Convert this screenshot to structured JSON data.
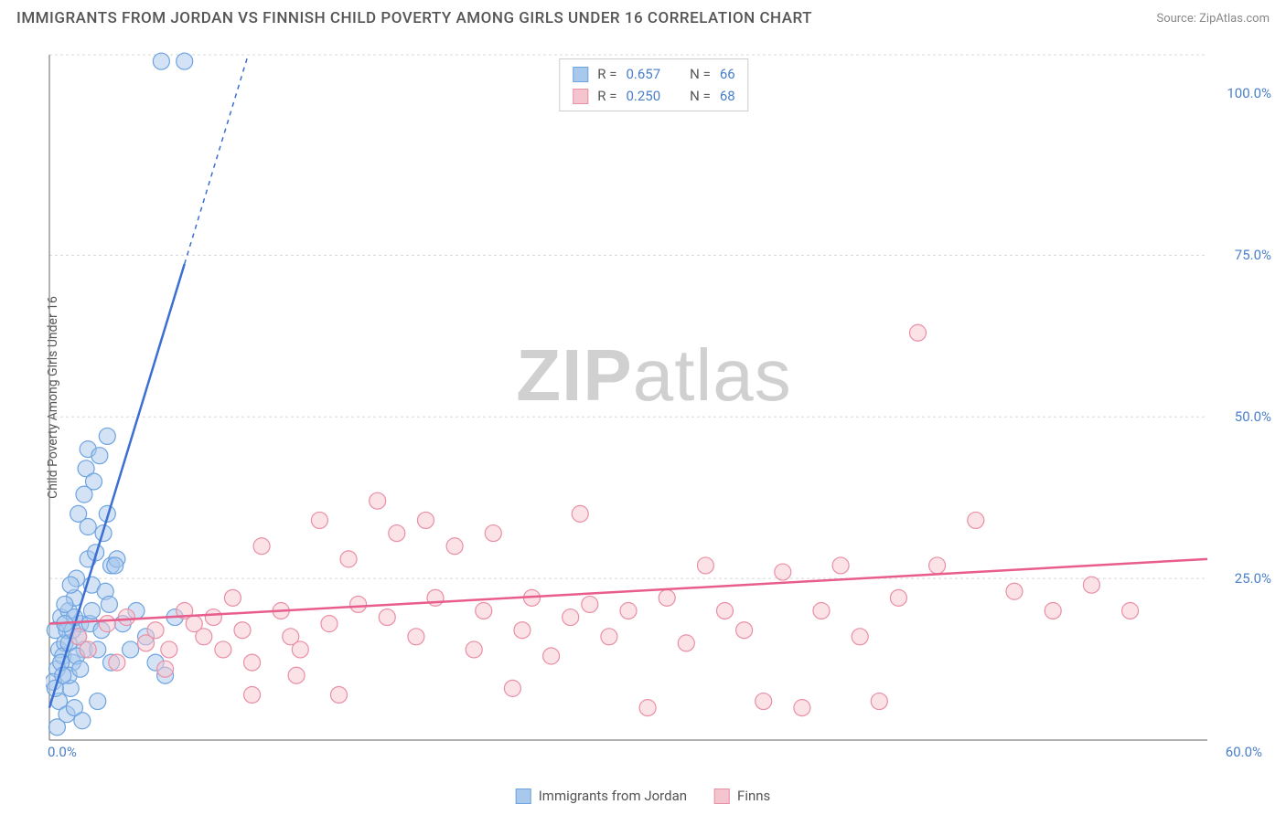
{
  "title": "IMMIGRANTS FROM JORDAN VS FINNISH CHILD POVERTY AMONG GIRLS UNDER 16 CORRELATION CHART",
  "source_label": "Source: ZipAtlas.com",
  "ylabel": "Child Poverty Among Girls Under 16",
  "watermark_bold": "ZIP",
  "watermark_rest": "atlas",
  "chart": {
    "type": "scatter",
    "xlim": [
      0,
      60
    ],
    "ylim": [
      0,
      106
    ],
    "xtick_labels": {
      "0": "0.0%",
      "60": "60.0%"
    },
    "ytick_labels": {
      "25": "25.0%",
      "50": "50.0%",
      "75": "75.0%",
      "100": "100.0%"
    },
    "grid_color": "#d8d8d8",
    "axis_color": "#808080",
    "plot_bg": "#ffffff",
    "marker_radius": 9,
    "marker_stroke_width": 1.2,
    "series": [
      {
        "name": "Immigrants from Jordan",
        "fill": "#a8c8ec",
        "stroke": "#6da3e0",
        "fill_opacity": 0.5,
        "r_label": "R =",
        "r_value": "0.657",
        "n_label": "N =",
        "n_value": "66",
        "trend": {
          "x1": 0,
          "y1": 5,
          "x2": 10.3,
          "y2": 106,
          "solid_until_x": 7.0,
          "color": "#3b6fd1",
          "width": 2.5
        },
        "points": [
          [
            0.3,
            17
          ],
          [
            0.5,
            14
          ],
          [
            0.4,
            11
          ],
          [
            0.6,
            19
          ],
          [
            0.8,
            15
          ],
          [
            0.2,
            9
          ],
          [
            0.7,
            13
          ],
          [
            0.9,
            17
          ],
          [
            1.0,
            20
          ],
          [
            1.2,
            12
          ],
          [
            1.3,
            22
          ],
          [
            1.5,
            16
          ],
          [
            1.1,
            8
          ],
          [
            1.4,
            25
          ],
          [
            1.6,
            18
          ],
          [
            1.8,
            14
          ],
          [
            0.5,
            6
          ],
          [
            0.8,
            21
          ],
          [
            1.0,
            10
          ],
          [
            2.0,
            28
          ],
          [
            2.2,
            24
          ],
          [
            2.4,
            29
          ],
          [
            2.1,
            18
          ],
          [
            2.5,
            14
          ],
          [
            2.8,
            32
          ],
          [
            3.0,
            35
          ],
          [
            3.2,
            27
          ],
          [
            3.5,
            28
          ],
          [
            1.9,
            42
          ],
          [
            2.0,
            45
          ],
          [
            2.3,
            40
          ],
          [
            2.6,
            44
          ],
          [
            3.0,
            47
          ],
          [
            1.5,
            35
          ],
          [
            1.8,
            38
          ],
          [
            2.0,
            33
          ],
          [
            0.4,
            2
          ],
          [
            0.9,
            4
          ],
          [
            1.3,
            5
          ],
          [
            1.7,
            3
          ],
          [
            2.5,
            6
          ],
          [
            3.2,
            12
          ],
          [
            3.8,
            18
          ],
          [
            4.2,
            14
          ],
          [
            4.5,
            20
          ],
          [
            5.0,
            16
          ],
          [
            5.5,
            12
          ],
          [
            6.0,
            10
          ],
          [
            6.5,
            19
          ],
          [
            1.0,
            15
          ],
          [
            1.2,
            17
          ],
          [
            1.4,
            13
          ],
          [
            0.6,
            12
          ],
          [
            0.3,
            8
          ],
          [
            0.7,
            10
          ],
          [
            1.6,
            11
          ],
          [
            3.4,
            27
          ],
          [
            2.9,
            23
          ],
          [
            2.2,
            20
          ],
          [
            1.1,
            24
          ],
          [
            1.3,
            19
          ],
          [
            0.8,
            18
          ],
          [
            2.7,
            17
          ],
          [
            3.1,
            21
          ],
          [
            5.8,
            105
          ],
          [
            7.0,
            105
          ]
        ]
      },
      {
        "name": "Finns",
        "fill": "#f5c5cf",
        "stroke": "#e98fa5",
        "fill_opacity": 0.5,
        "r_label": "R =",
        "r_value": "0.250",
        "n_label": "N =",
        "n_value": "68",
        "trend": {
          "x1": 0,
          "y1": 18,
          "x2": 60,
          "y2": 28,
          "color": "#e85d8c",
          "width": 2.5
        },
        "points": [
          [
            1.5,
            16
          ],
          [
            2.0,
            14
          ],
          [
            3.0,
            18
          ],
          [
            3.5,
            12
          ],
          [
            4.0,
            19
          ],
          [
            5.0,
            15
          ],
          [
            5.5,
            17
          ],
          [
            6.0,
            11
          ],
          [
            7.0,
            20
          ],
          [
            8.0,
            16
          ],
          [
            8.5,
            19
          ],
          [
            9.0,
            14
          ],
          [
            9.5,
            22
          ],
          [
            10.0,
            17
          ],
          [
            10.5,
            7
          ],
          [
            11.0,
            30
          ],
          [
            12.0,
            20
          ],
          [
            12.5,
            16
          ],
          [
            13.0,
            14
          ],
          [
            14.0,
            34
          ],
          [
            14.5,
            18
          ],
          [
            15.0,
            7
          ],
          [
            15.5,
            28
          ],
          [
            16.0,
            21
          ],
          [
            17.0,
            37
          ],
          [
            17.5,
            19
          ],
          [
            18.0,
            32
          ],
          [
            19.0,
            16
          ],
          [
            19.5,
            34
          ],
          [
            20.0,
            22
          ],
          [
            21.0,
            30
          ],
          [
            22.0,
            14
          ],
          [
            22.5,
            20
          ],
          [
            23.0,
            32
          ],
          [
            24.0,
            8
          ],
          [
            24.5,
            17
          ],
          [
            25.0,
            22
          ],
          [
            26.0,
            13
          ],
          [
            27.0,
            19
          ],
          [
            27.5,
            35
          ],
          [
            28.0,
            21
          ],
          [
            29.0,
            16
          ],
          [
            30.0,
            20
          ],
          [
            31.0,
            5
          ],
          [
            32.0,
            22
          ],
          [
            33.0,
            15
          ],
          [
            34.0,
            27
          ],
          [
            35.0,
            20
          ],
          [
            36.0,
            17
          ],
          [
            37.0,
            6
          ],
          [
            38.0,
            26
          ],
          [
            39.0,
            5
          ],
          [
            40.0,
            20
          ],
          [
            41.0,
            27
          ],
          [
            42.0,
            16
          ],
          [
            43.0,
            6
          ],
          [
            44.0,
            22
          ],
          [
            45.0,
            63
          ],
          [
            46.0,
            27
          ],
          [
            48.0,
            34
          ],
          [
            50.0,
            23
          ],
          [
            52.0,
            20
          ],
          [
            54.0,
            24
          ],
          [
            56.0,
            20
          ],
          [
            10.5,
            12
          ],
          [
            12.8,
            10
          ],
          [
            7.5,
            18
          ],
          [
            6.2,
            14
          ]
        ]
      }
    ]
  },
  "legend_bottom": [
    {
      "swatch_fill": "#a8c8ec",
      "swatch_stroke": "#6da3e0",
      "label": "Immigrants from Jordan"
    },
    {
      "swatch_fill": "#f5c5cf",
      "swatch_stroke": "#e98fa5",
      "label": "Finns"
    }
  ]
}
